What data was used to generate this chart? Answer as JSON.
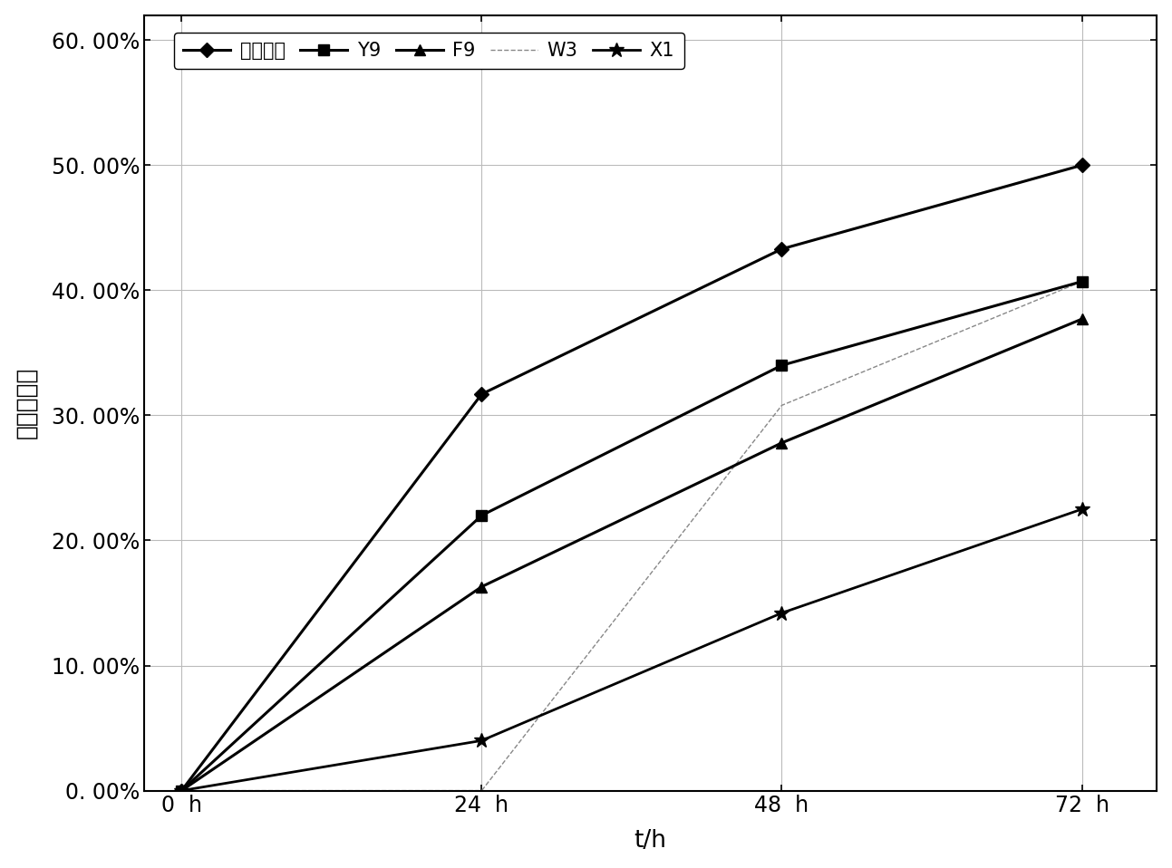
{
  "x": [
    0,
    24,
    48,
    72
  ],
  "series": [
    {
      "label": "混合菌群",
      "values": [
        0.0,
        0.317,
        0.433,
        0.5
      ],
      "color": "#000000",
      "marker": "D",
      "markersize": 8,
      "linewidth": 2.2,
      "linestyle": "-",
      "zorder": 5
    },
    {
      "label": "Y9",
      "values": [
        0.0,
        0.22,
        0.34,
        0.407
      ],
      "color": "#000000",
      "marker": "s",
      "markersize": 8,
      "linewidth": 2.2,
      "linestyle": "-",
      "zorder": 4
    },
    {
      "label": "F9",
      "values": [
        0.0,
        0.163,
        0.278,
        0.377
      ],
      "color": "#000000",
      "marker": "^",
      "markersize": 8,
      "linewidth": 2.2,
      "linestyle": "-",
      "zorder": 3
    },
    {
      "label": "W3",
      "values": [
        0.0,
        0.0,
        0.308,
        0.407
      ],
      "color": "#888888",
      "marker": "None",
      "markersize": 0,
      "linewidth": 1.0,
      "linestyle": "--",
      "zorder": 2
    },
    {
      "label": "X1",
      "values": [
        0.0,
        0.04,
        0.142,
        0.225
      ],
      "color": "#000000",
      "marker": "*",
      "markersize": 12,
      "linewidth": 2.0,
      "linestyle": "-",
      "zorder": 4
    }
  ],
  "xlabel": "t/h",
  "ylabel": "柴油降解率",
  "xlim": [
    -3,
    78
  ],
  "ylim": [
    0.0,
    0.62
  ],
  "xticks": [
    0,
    24,
    48,
    72
  ],
  "xtick_labels": [
    "0  h",
    "24  h",
    "48  h",
    "72  h"
  ],
  "yticks": [
    0.0,
    0.1,
    0.2,
    0.3,
    0.4,
    0.5,
    0.6
  ],
  "ytick_labels": [
    "0. 00%",
    "10. 00%",
    "20. 00%",
    "30. 00%",
    "40. 00%",
    "50. 00%",
    "60. 00%"
  ],
  "grid": true,
  "background_color": "#ffffff",
  "figsize": [
    12.93,
    9.58
  ],
  "dpi": 100
}
